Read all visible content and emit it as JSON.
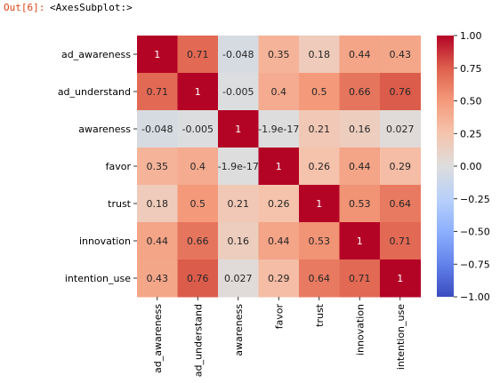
{
  "cell_output": {
    "prompt": "Out[6]:",
    "text": "<AxesSubplot:>"
  },
  "chart_data": {
    "type": "heatmap",
    "title": "",
    "xlabel": "",
    "ylabel": "",
    "colormap": "coolwarm",
    "vmin": -1.0,
    "vmax": 1.0,
    "row_labels": [
      "ad_awareness",
      "ad_understand",
      "awareness",
      "favor",
      "trust",
      "innovation",
      "intention_use"
    ],
    "col_labels": [
      "ad_awareness",
      "ad_understand",
      "awareness",
      "favor",
      "trust",
      "innovation",
      "intention_use"
    ],
    "values": [
      [
        1,
        0.71,
        -0.048,
        0.35,
        0.18,
        0.44,
        0.43
      ],
      [
        0.71,
        1,
        -0.005,
        0.4,
        0.5,
        0.66,
        0.76
      ],
      [
        -0.048,
        -0.005,
        1,
        -1.9e-17,
        0.21,
        0.16,
        0.027
      ],
      [
        0.35,
        0.4,
        -1.9e-17,
        1,
        0.26,
        0.44,
        0.29
      ],
      [
        0.18,
        0.5,
        0.21,
        0.26,
        1,
        0.53,
        0.64
      ],
      [
        0.44,
        0.66,
        0.16,
        0.44,
        0.53,
        1,
        0.71
      ],
      [
        0.43,
        0.76,
        0.027,
        0.29,
        0.64,
        0.71,
        1
      ]
    ],
    "annotations": [
      [
        "1",
        "0.71",
        "-0.048",
        "0.35",
        "0.18",
        "0.44",
        "0.43"
      ],
      [
        "0.71",
        "1",
        "-0.005",
        "0.4",
        "0.5",
        "0.66",
        "0.76"
      ],
      [
        "-0.048",
        "-0.005",
        "1",
        "-1.9e-17",
        "0.21",
        "0.16",
        "0.027"
      ],
      [
        "0.35",
        "0.4",
        "-1.9e-17",
        "1",
        "0.26",
        "0.44",
        "0.29"
      ],
      [
        "0.18",
        "0.5",
        "0.21",
        "0.26",
        "1",
        "0.53",
        "0.64"
      ],
      [
        "0.44",
        "0.66",
        "0.16",
        "0.44",
        "0.53",
        "1",
        "0.71"
      ],
      [
        "0.43",
        "0.76",
        "0.027",
        "0.29",
        "0.64",
        "0.71",
        "1"
      ]
    ],
    "colorbar": {
      "ticks": [
        1.0,
        0.75,
        0.5,
        0.25,
        0.0,
        -0.25,
        -0.5,
        -0.75,
        -1.0
      ],
      "tick_labels": [
        "1.00",
        "0.75",
        "0.50",
        "0.25",
        "0.00",
        "−0.25",
        "−0.50",
        "−0.75",
        "−1.00"
      ]
    },
    "grid": false,
    "legend": "none"
  }
}
